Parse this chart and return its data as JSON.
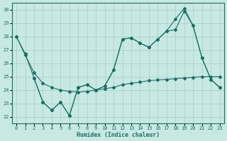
{
  "xlabel": "Humidex (Indice chaleur)",
  "background_color": "#c8e8e4",
  "grid_color": "#a8ccc8",
  "line_color": "#1a6e62",
  "xlim": [
    -0.5,
    23.5
  ],
  "ylim": [
    21.5,
    30.5
  ],
  "yticks": [
    22,
    23,
    24,
    25,
    26,
    27,
    28,
    29,
    30
  ],
  "xticks": [
    0,
    1,
    2,
    3,
    4,
    5,
    6,
    7,
    8,
    9,
    10,
    11,
    12,
    13,
    14,
    15,
    16,
    17,
    18,
    19,
    20,
    21,
    22,
    23
  ],
  "line1_x": [
    0,
    1,
    2,
    3,
    4,
    5,
    6,
    7,
    8,
    9,
    10,
    11,
    12,
    13,
    14,
    15,
    16,
    17,
    18,
    19,
    20,
    21,
    22,
    23
  ],
  "line1_y": [
    28.0,
    26.7,
    24.9,
    23.1,
    22.5,
    23.1,
    22.1,
    24.2,
    24.4,
    24.0,
    24.3,
    25.5,
    27.8,
    27.9,
    27.5,
    27.2,
    27.8,
    28.4,
    28.5,
    29.9,
    28.8,
    26.4,
    24.8,
    24.2
  ],
  "line2_x": [
    0,
    1,
    2,
    3,
    4,
    5,
    6,
    7,
    8,
    9,
    10,
    11,
    12,
    13,
    14,
    15,
    16,
    17,
    18,
    19,
    20,
    21,
    22,
    23
  ],
  "line2_y": [
    28.0,
    26.6,
    25.3,
    24.5,
    24.2,
    24.0,
    23.9,
    23.85,
    23.9,
    24.0,
    24.1,
    24.2,
    24.4,
    24.5,
    24.6,
    24.7,
    24.75,
    24.8,
    24.85,
    24.9,
    24.95,
    25.0,
    25.0,
    25.0
  ],
  "line3_x": [
    2,
    3,
    4,
    5,
    6,
    7,
    8,
    9,
    10,
    11,
    12,
    13,
    14,
    15,
    16,
    17,
    18,
    19,
    20,
    21,
    22,
    23
  ],
  "line3_y": [
    24.9,
    23.1,
    22.5,
    23.1,
    22.1,
    24.2,
    24.4,
    24.0,
    24.3,
    25.5,
    27.8,
    27.9,
    27.5,
    27.2,
    27.8,
    28.4,
    29.3,
    30.1,
    28.8,
    26.4,
    24.8,
    24.2
  ]
}
